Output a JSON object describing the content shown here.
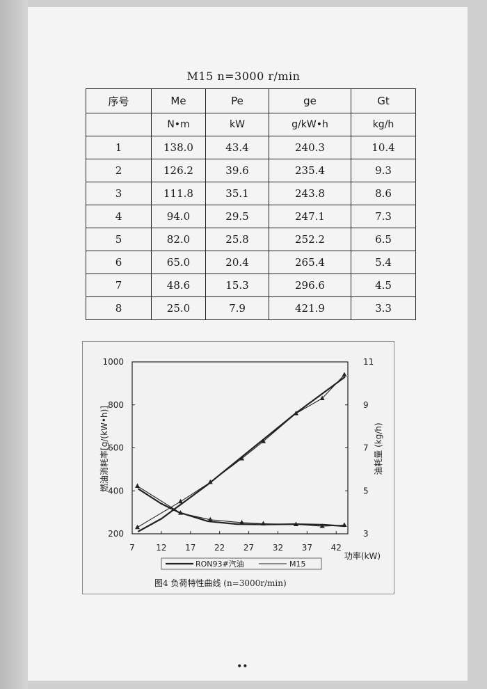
{
  "table": {
    "title": "M15  n=3000 r/min",
    "headers": [
      "序号",
      "Me",
      "Pe",
      "ge",
      "Gt"
    ],
    "units": [
      "",
      "N•m",
      "kW",
      "g/kW•h",
      "kg/h"
    ],
    "rows": [
      [
        "1",
        "138.0",
        "43.4",
        "240.3",
        "10.4"
      ],
      [
        "2",
        "126.2",
        "39.6",
        "235.4",
        "9.3"
      ],
      [
        "3",
        "111.8",
        "35.1",
        "243.8",
        "8.6"
      ],
      [
        "4",
        "94.0",
        "29.5",
        "247.1",
        "7.3"
      ],
      [
        "5",
        "82.0",
        "25.8",
        "252.2",
        "6.5"
      ],
      [
        "6",
        "65.0",
        "20.4",
        "265.4",
        "5.4"
      ],
      [
        "7",
        "48.6",
        "15.3",
        "296.6",
        "4.5"
      ],
      [
        "8",
        "25.0",
        "7.9",
        "421.9",
        "3.3"
      ]
    ]
  },
  "chart_data": {
    "type": "line",
    "caption": "图4  负荷特性曲线  (n=3000r/min)",
    "xlabel": "功率(kW)",
    "ylabel_left": "燃油消耗率[g/(kW•h)]",
    "ylabel_right": "油耗量 (kg/h)",
    "xlim": [
      7,
      44
    ],
    "x_ticks": [
      "7",
      "12",
      "17",
      "22",
      "27",
      "32",
      "37",
      "42"
    ],
    "ylim_left": [
      200,
      1000
    ],
    "y_ticks_left": [
      "200",
      "400",
      "600",
      "800",
      "1000"
    ],
    "ylim_right": [
      3,
      11
    ],
    "y_ticks_right": [
      "3",
      "5",
      "7",
      "9",
      "11"
    ],
    "legend": [
      "RON93#汽油",
      "M15"
    ],
    "series": [
      {
        "name": "RON93#汽油",
        "axis": "left",
        "marker": "none",
        "x": [
          8,
          10,
          12,
          15,
          20,
          25,
          30,
          35,
          40,
          43.5
        ],
        "y": [
          410,
          375,
          340,
          300,
          258,
          245,
          243,
          245,
          242,
          235
        ]
      },
      {
        "name": "RON93#汽油",
        "axis": "right",
        "marker": "none",
        "x": [
          8,
          12,
          16,
          20,
          25,
          30,
          35,
          40,
          43.5
        ],
        "y": [
          3.1,
          3.7,
          4.5,
          5.3,
          6.4,
          7.5,
          8.6,
          9.6,
          10.3
        ]
      },
      {
        "name": "M15",
        "axis": "left",
        "marker": "triangle",
        "x": [
          43.4,
          39.6,
          35.1,
          29.5,
          25.8,
          20.4,
          15.3,
          7.9
        ],
        "y": [
          240.3,
          235.4,
          243.8,
          247.1,
          252.2,
          265.4,
          296.6,
          421.9
        ]
      },
      {
        "name": "M15",
        "axis": "right",
        "marker": "triangle",
        "x": [
          43.4,
          39.6,
          35.1,
          29.5,
          25.8,
          20.4,
          15.3,
          7.9
        ],
        "y": [
          10.4,
          9.3,
          8.6,
          7.3,
          6.5,
          5.4,
          4.5,
          3.3
        ]
      }
    ]
  },
  "footer": {
    "dots": "••"
  }
}
